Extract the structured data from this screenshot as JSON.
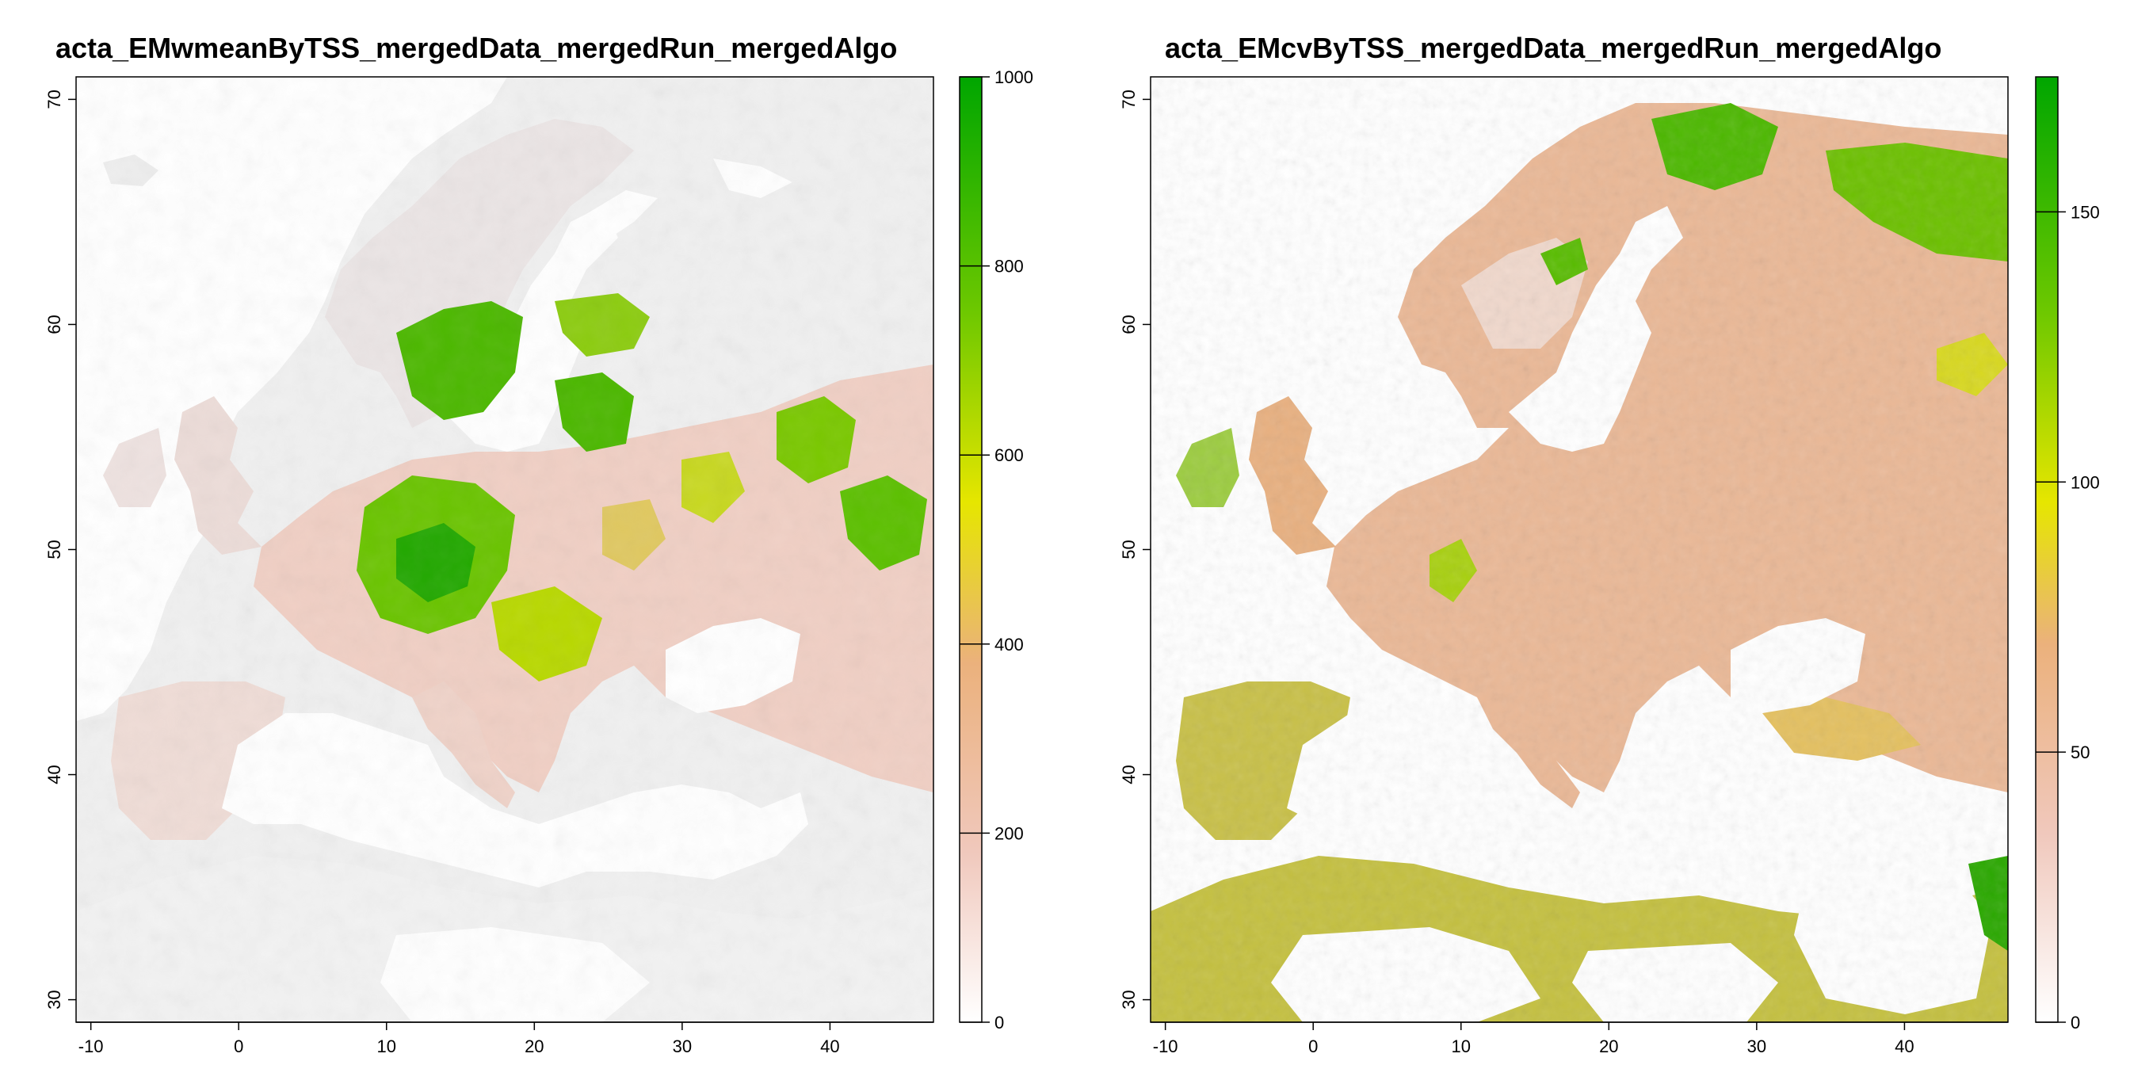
{
  "maps": [
    {
      "title": "acta_EMwmeanByTSS_mergedData_mergedRun_mergedAlgo",
      "x_ticks": [
        "-10",
        "0",
        "10",
        "20",
        "30",
        "40"
      ],
      "y_ticks": [
        "30",
        "40",
        "50",
        "60",
        "70"
      ],
      "legend_ticks": [
        "0",
        "200",
        "400",
        "600",
        "800",
        "1000"
      ],
      "legend_range": [
        0,
        1000
      ],
      "x_range": [
        -11,
        47
      ],
      "y_range": [
        29,
        71
      ]
    },
    {
      "title": "acta_EMcvByTSS_mergedData_mergedRun_mergedAlgo",
      "x_ticks": [
        "-10",
        "0",
        "10",
        "20",
        "30",
        "40"
      ],
      "y_ticks": [
        "30",
        "40",
        "50",
        "60",
        "70"
      ],
      "legend_ticks": [
        "0",
        "50",
        "100",
        "150"
      ],
      "legend_range": [
        0,
        175
      ],
      "x_range": [
        -11,
        47
      ],
      "y_range": [
        29,
        71
      ]
    }
  ],
  "colors": {
    "low": "#f2f2f2",
    "pink": "#f0c4b4",
    "tan": "#eab17a",
    "yellow": "#e6e600",
    "green": "#5cc800",
    "dark_green": "#00a600"
  }
}
